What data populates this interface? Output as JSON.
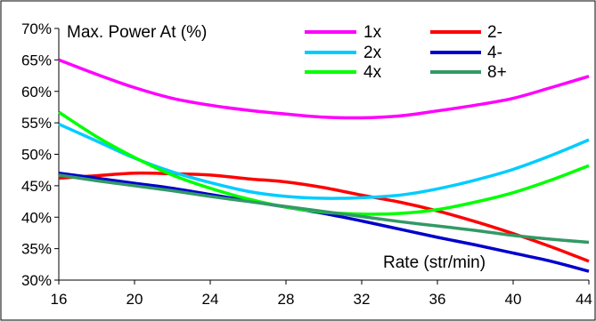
{
  "chart_data": {
    "type": "line",
    "title": "Max. Power At (%)",
    "xlabel": "Rate (str/min)",
    "ylabel": "",
    "x": [
      16,
      18,
      20,
      22,
      24,
      26,
      28,
      30,
      32,
      34,
      36,
      38,
      40,
      42,
      44
    ],
    "xlim": [
      16,
      44
    ],
    "ylim": [
      30,
      70
    ],
    "x_ticks": [
      "16",
      "20",
      "24",
      "28",
      "32",
      "36",
      "40",
      "44"
    ],
    "y_ticks": [
      "30%",
      "35%",
      "40%",
      "45%",
      "50%",
      "55%",
      "60%",
      "65%",
      "70%"
    ],
    "grid": false,
    "legend_position": "top-right",
    "series": [
      {
        "name": "1x",
        "color": "#ff00ff",
        "values": [
          65.0,
          62.7,
          60.6,
          58.9,
          57.8,
          57.0,
          56.4,
          55.9,
          55.8,
          56.1,
          56.9,
          57.8,
          58.9,
          60.6,
          62.4
        ]
      },
      {
        "name": "2-",
        "color": "#ff0000",
        "values": [
          46.2,
          46.6,
          47.0,
          46.9,
          46.7,
          46.1,
          45.6,
          44.7,
          43.5,
          42.4,
          41.0,
          39.3,
          37.4,
          35.3,
          33.0
        ]
      },
      {
        "name": "2x",
        "color": "#00ccff",
        "values": [
          54.8,
          52.1,
          49.4,
          47.2,
          45.5,
          44.1,
          43.3,
          43.0,
          43.1,
          43.5,
          44.5,
          45.9,
          47.6,
          49.8,
          52.3
        ]
      },
      {
        "name": "4-",
        "color": "#0000cc",
        "values": [
          47.0,
          46.2,
          45.4,
          44.6,
          43.6,
          42.6,
          41.6,
          40.6,
          39.4,
          38.1,
          36.8,
          35.6,
          34.3,
          33.0,
          31.4
        ]
      },
      {
        "name": "4x",
        "color": "#00ff00",
        "values": [
          56.7,
          52.8,
          49.5,
          46.7,
          44.6,
          42.9,
          41.6,
          40.8,
          40.5,
          40.6,
          41.2,
          42.4,
          43.9,
          45.9,
          48.2
        ]
      },
      {
        "name": "8+",
        "color": "#339966",
        "values": [
          46.7,
          45.8,
          45.0,
          44.2,
          43.3,
          42.5,
          41.7,
          40.9,
          40.1,
          39.3,
          38.6,
          37.9,
          37.1,
          36.5,
          36.0
        ]
      }
    ]
  }
}
